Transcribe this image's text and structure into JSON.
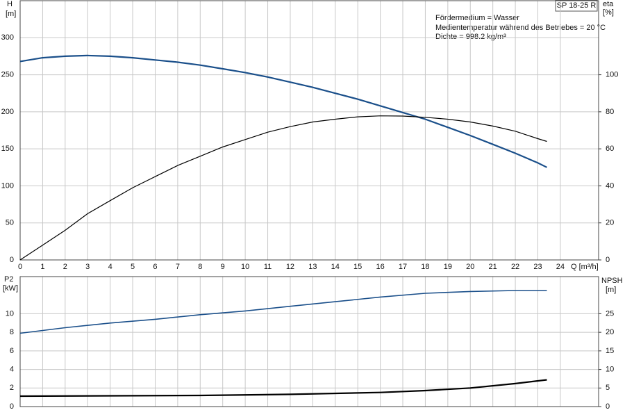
{
  "chart_data": [
    {
      "type": "line",
      "title": "SP 18-25 R",
      "annotations": [
        "Fördermedium = Wasser",
        "Medientemperatur während des Betriebes = 20 °C",
        "Dichte = 998.2 kg/m³"
      ],
      "xlabel": "Q [m³/h]",
      "ylabel": "H",
      "yunit": "[m]",
      "y2label": "eta",
      "y2unit": "[%]",
      "xlim": [
        0,
        25.7
      ],
      "xticks": [
        0,
        1,
        2,
        3,
        4,
        5,
        6,
        7,
        8,
        9,
        10,
        11,
        12,
        13,
        14,
        15,
        16,
        17,
        18,
        19,
        20,
        21,
        22,
        23,
        24
      ],
      "ylim": [
        0,
        350
      ],
      "yticks": [
        0,
        50,
        100,
        150,
        200,
        250,
        300
      ],
      "y2lim": [
        0,
        140
      ],
      "y2ticks": [
        0,
        20,
        40,
        60,
        80,
        100
      ],
      "grid": true,
      "series": [
        {
          "name": "H",
          "color": "#1a4f8a",
          "width": 2.2,
          "x": [
            0,
            1,
            2,
            3,
            4,
            5,
            6,
            7,
            8,
            9,
            10,
            11,
            12,
            13,
            14,
            15,
            16,
            17,
            18,
            19,
            20,
            21,
            22,
            23,
            23.4
          ],
          "values": [
            268,
            273,
            275,
            276,
            275,
            273,
            270,
            267,
            263,
            258,
            253,
            247,
            240,
            233,
            225,
            217,
            208,
            199,
            190,
            179,
            168,
            156,
            144,
            131,
            125
          ]
        },
        {
          "name": "eta",
          "color": "#000000",
          "width": 1.2,
          "axis": "y2",
          "x": [
            0,
            1,
            2,
            3,
            4,
            5,
            6,
            7,
            8,
            9,
            10,
            11,
            12,
            13,
            14,
            15,
            16,
            17,
            18,
            19,
            20,
            21,
            22,
            23,
            23.4
          ],
          "values": [
            0,
            8,
            16,
            25,
            32,
            39,
            45,
            51,
            56,
            61,
            65,
            69,
            72,
            74.5,
            76,
            77.3,
            77.8,
            77.7,
            77,
            76,
            74.5,
            72.3,
            69.5,
            65.5,
            64
          ]
        }
      ]
    },
    {
      "type": "line",
      "ylabel": "P2",
      "yunit": "[kW]",
      "y2label": "NPSH",
      "y2unit": "[m]",
      "xlim": [
        0,
        25.7
      ],
      "ylim": [
        0,
        14
      ],
      "yticks": [
        0,
        2,
        4,
        6,
        8,
        10
      ],
      "y2lim": [
        0,
        35
      ],
      "y2ticks": [
        0,
        5,
        10,
        15,
        20,
        25
      ],
      "grid": true,
      "series": [
        {
          "name": "P2",
          "color": "#1a4f8a",
          "width": 1.6,
          "x": [
            0,
            2,
            4,
            6,
            8,
            10,
            12,
            14,
            16,
            18,
            20,
            22,
            23.4
          ],
          "values": [
            7.9,
            8.5,
            9.0,
            9.4,
            9.9,
            10.3,
            10.8,
            11.3,
            11.8,
            12.2,
            12.4,
            12.5,
            12.5
          ]
        },
        {
          "name": "NPSH",
          "color": "#000000",
          "width": 2.2,
          "axis": "y2",
          "x": [
            0,
            4,
            8,
            12,
            16,
            18,
            20,
            22,
            23.4
          ],
          "values": [
            2.8,
            2.9,
            3.0,
            3.3,
            3.8,
            4.3,
            5.0,
            6.2,
            7.2
          ]
        }
      ]
    }
  ]
}
